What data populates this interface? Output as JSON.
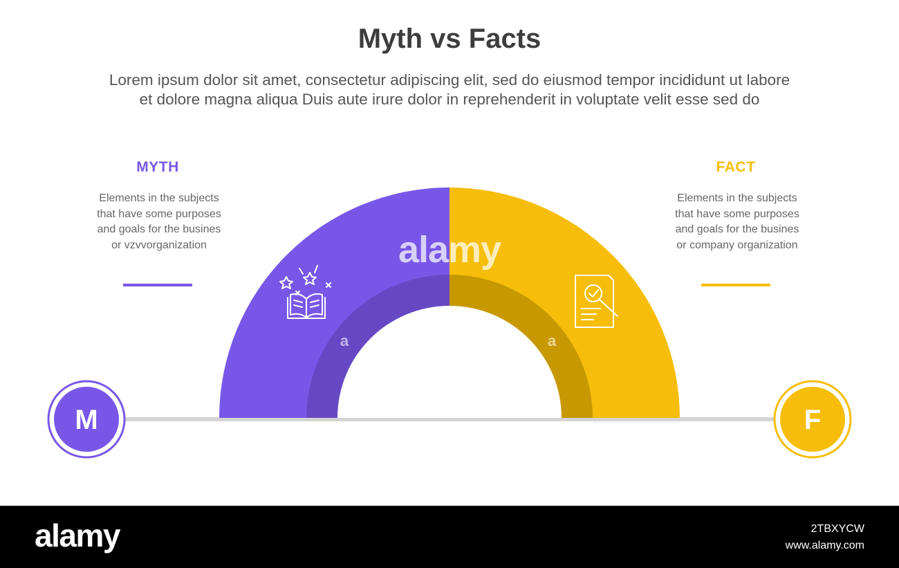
{
  "title": "Myth vs Facts",
  "subtitle_line1": "Lorem ipsum dolor sit amet, consectetur adipiscing elit, sed do eiusmod tempor incididunt ut labore",
  "subtitle_line2": "et dolore magna aliqua Duis aute irure dolor in reprehenderit in voluptate velit esse sed do",
  "myth": {
    "label": "MYTH",
    "desc": [
      "Elements in the subjects",
      "that have some purposes",
      "and goals for the  busines",
      "or vzvvorganization"
    ],
    "badge_letter": "M",
    "icon": "open-book-sparkle-icon",
    "color": "#7857e8",
    "inner_color": "#6748c4"
  },
  "fact": {
    "label": "FACT",
    "desc": [
      "Elements in the subjects",
      "that have some purposes",
      "and goals for the  busines",
      "or company organization"
    ],
    "badge_letter": "F",
    "icon": "document-magnifier-icon",
    "color": "#f6be0a",
    "inner_color": "#c79800"
  },
  "watermark": {
    "center": "alamy",
    "small": "a"
  },
  "footer": {
    "logo": "alamy",
    "image_id": "2TBXYCW",
    "site": "www.alamy.com"
  }
}
